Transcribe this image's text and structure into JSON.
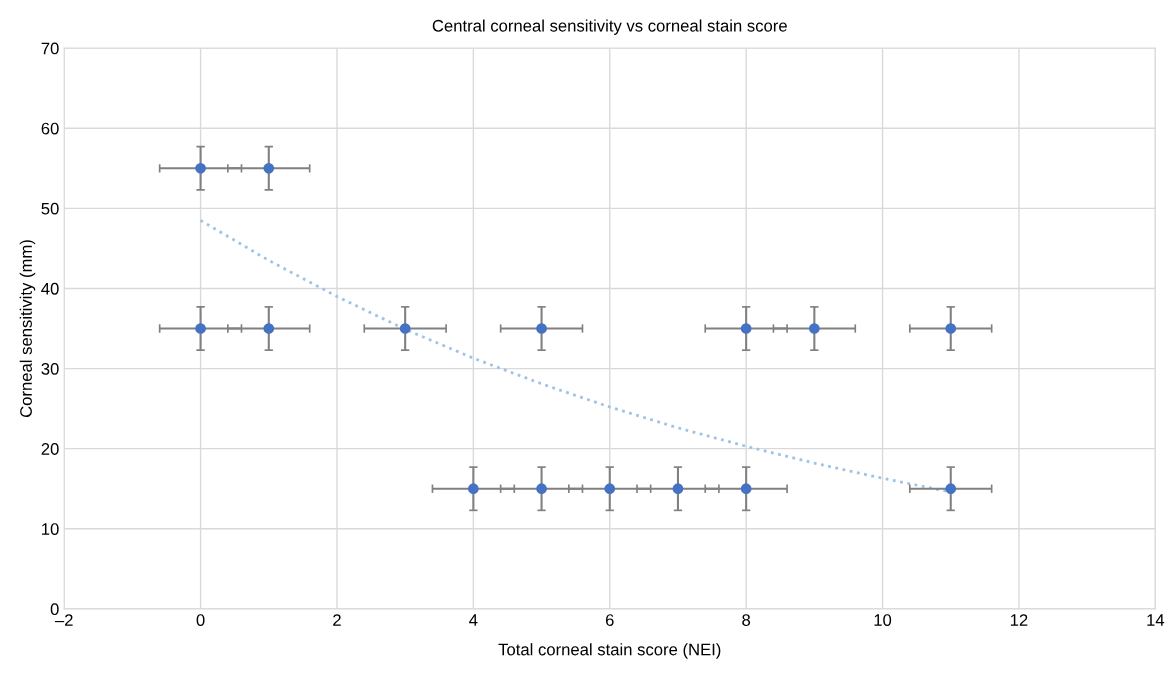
{
  "chart_data": {
    "type": "scatter",
    "title": "Central corneal sensitivity vs corneal stain score",
    "xlabel": "Total corneal stain score (NEI)",
    "ylabel": "Corneal sensitivity (mm)",
    "xlim": [
      -2,
      14
    ],
    "xticks": [
      {
        "value": -2,
        "label": "–2"
      },
      0,
      2,
      4,
      6,
      8,
      10,
      12,
      14
    ],
    "ylim": [
      0,
      70
    ],
    "yticks": [
      0,
      10,
      20,
      30,
      40,
      50,
      60,
      70
    ],
    "grid": true,
    "series": [
      {
        "color": "#4472c4",
        "marker": "circle",
        "x": [
          0,
          1,
          0,
          1,
          3,
          5,
          8,
          9,
          11,
          4,
          5,
          6,
          7,
          8,
          11
        ],
        "values": [
          55,
          55,
          35,
          35,
          35,
          35,
          35,
          35,
          35,
          15,
          15,
          15,
          15,
          15,
          15
        ],
        "errors": [
          2.7,
          2.7,
          2.7,
          2.7,
          2.7,
          2.7,
          2.7,
          2.7,
          2.7,
          2.7,
          2.7,
          2.7,
          2.7,
          2.7,
          2.7
        ],
        "xerrors": [
          0.6,
          0.6,
          0.6,
          0.6,
          0.6,
          0.6,
          0.6,
          0.6,
          0.6,
          0.6,
          0.6,
          0.6,
          0.6,
          0.6,
          0.6
        ]
      },
      {
        "type": "line",
        "color": "#9dc3e6",
        "marker": "none",
        "line_style": "dotted",
        "x": [
          0,
          1,
          2,
          3,
          4,
          5,
          6,
          7,
          8,
          9,
          10,
          11
        ],
        "values": [
          48.5,
          43.5,
          39.0,
          34.9,
          31.3,
          28.1,
          25.2,
          22.6,
          20.3,
          18.2,
          16.3,
          14.6
        ]
      }
    ]
  }
}
